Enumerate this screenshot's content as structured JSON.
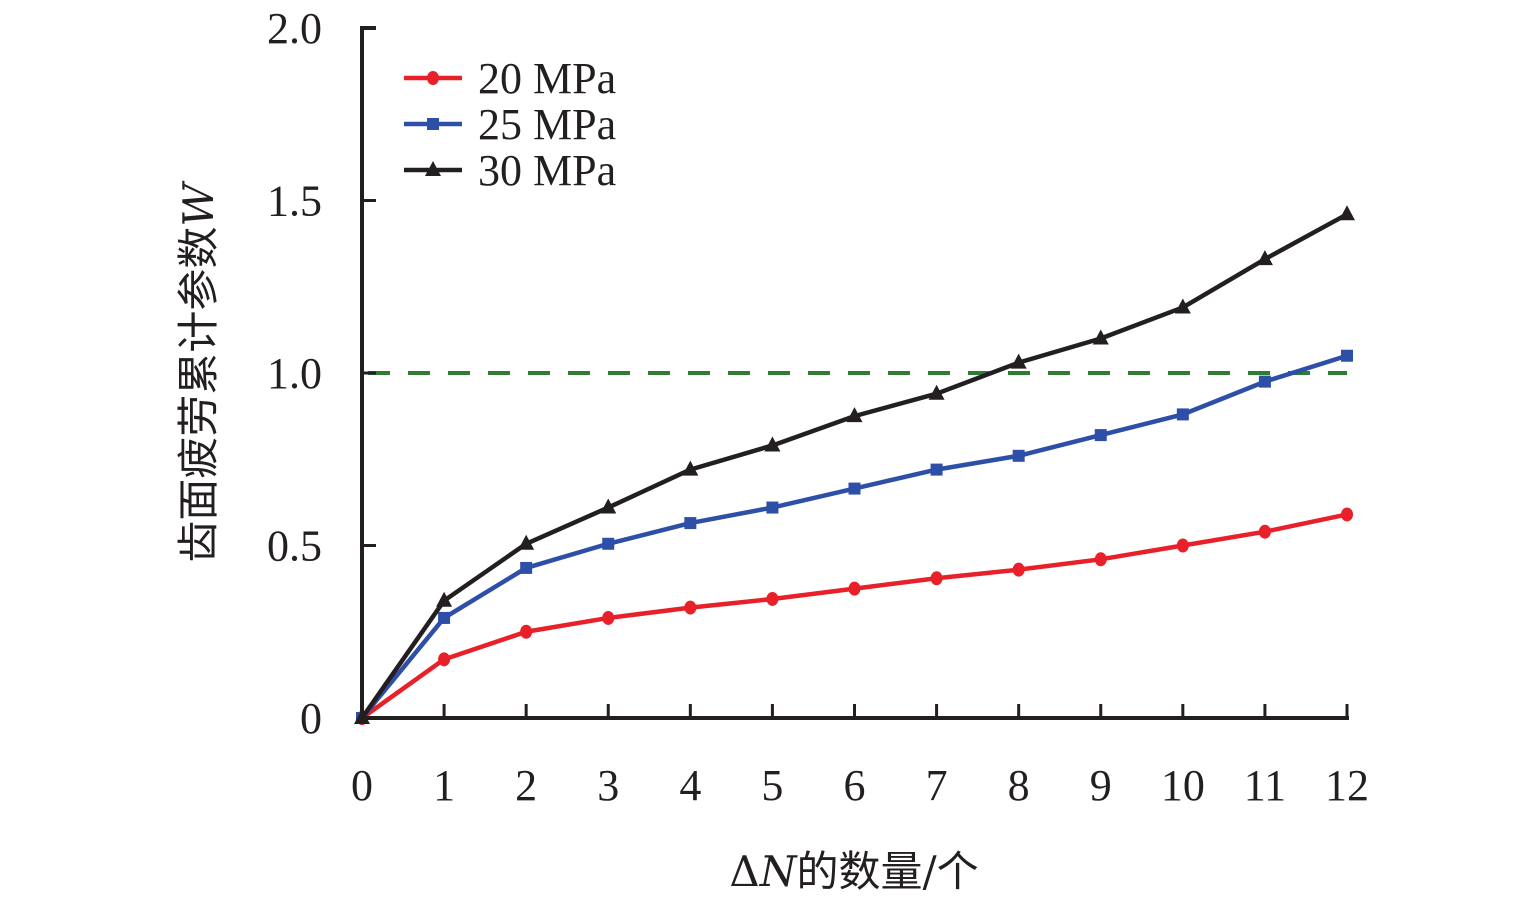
{
  "chart_data": {
    "type": "line",
    "title": "",
    "xlabel": {
      "prefix": "Δ",
      "var": "N",
      "suffix": "的数量/个"
    },
    "ylabel": {
      "text": "齿面疲劳累计参数",
      "var": "W"
    },
    "xlim": [
      0,
      12
    ],
    "ylim": [
      0,
      2.0
    ],
    "x": [
      0,
      1,
      2,
      3,
      4,
      5,
      6,
      7,
      8,
      9,
      10,
      11,
      12
    ],
    "x_ticks": [
      "0",
      "1",
      "2",
      "3",
      "4",
      "5",
      "6",
      "7",
      "8",
      "9",
      "10",
      "11",
      "12"
    ],
    "y_ticks": [
      {
        "value": 0,
        "label": "0"
      },
      {
        "value": 0.5,
        "label": "0.5"
      },
      {
        "value": 1.0,
        "label": "1.0"
      },
      {
        "value": 1.5,
        "label": "1.5"
      },
      {
        "value": 2.0,
        "label": "2.0"
      }
    ],
    "grid": false,
    "legend_position": "top-left",
    "reference_line": {
      "y": 1.0,
      "style": "dashed",
      "color": "#2e7d32"
    },
    "series": [
      {
        "name": "20 MPa",
        "color": "#e8202a",
        "marker": "circle",
        "values": [
          0,
          0.17,
          0.25,
          0.29,
          0.32,
          0.345,
          0.375,
          0.405,
          0.43,
          0.46,
          0.5,
          0.54,
          0.59
        ]
      },
      {
        "name": "25 MPa",
        "color": "#2e4fa8",
        "marker": "square",
        "values": [
          0,
          0.29,
          0.435,
          0.505,
          0.565,
          0.61,
          0.665,
          0.72,
          0.76,
          0.82,
          0.88,
          0.975,
          1.05
        ]
      },
      {
        "name": "30 MPa",
        "color": "#231f20",
        "marker": "triangle",
        "values": [
          0,
          0.34,
          0.505,
          0.61,
          0.72,
          0.79,
          0.875,
          0.94,
          1.03,
          1.1,
          1.19,
          1.33,
          1.46
        ]
      }
    ]
  }
}
